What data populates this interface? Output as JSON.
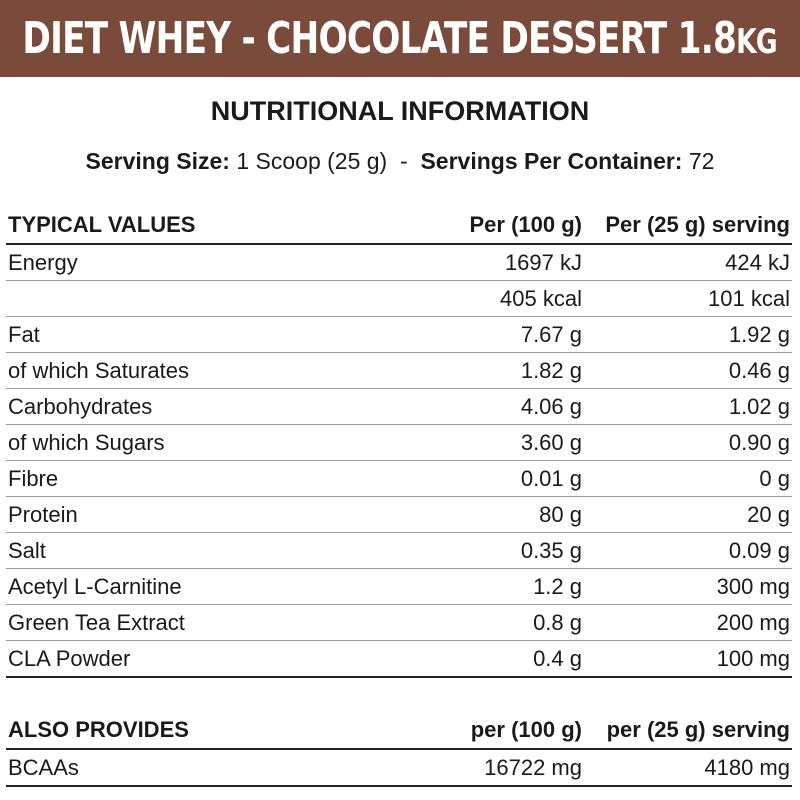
{
  "banner": {
    "title_main": "DIET WHEY - CHOCOLATE DESSERT 1.8",
    "title_unit": "KG",
    "background_color": "#7a4a3a"
  },
  "section_title": "NUTRITIONAL INFORMATION",
  "serving": {
    "size_label": "Serving Size:",
    "size_value": "1 Scoop (25 g)",
    "separator": "-",
    "per_container_label": "Servings Per Container:",
    "per_container_value": "72"
  },
  "typical": {
    "headers": {
      "label": "TYPICAL VALUES",
      "per_100": "Per (100 g)",
      "per_serving": "Per (25 g) serving"
    },
    "rows": [
      {
        "label": "Energy",
        "per_100": "1697 kJ",
        "per_serving": "424 kJ"
      },
      {
        "label": "",
        "per_100": "405 kcal",
        "per_serving": "101 kcal"
      },
      {
        "label": "Fat",
        "per_100": "7.67 g",
        "per_serving": "1.92 g"
      },
      {
        "label": "of which Saturates",
        "per_100": "1.82 g",
        "per_serving": "0.46 g"
      },
      {
        "label": "Carbohydrates",
        "per_100": "4.06 g",
        "per_serving": "1.02 g"
      },
      {
        "label": "of which Sugars",
        "per_100": "3.60 g",
        "per_serving": "0.90 g"
      },
      {
        "label": "Fibre",
        "per_100": "0.01 g",
        "per_serving": "0 g"
      },
      {
        "label": "Protein",
        "per_100": "80 g",
        "per_serving": "20 g"
      },
      {
        "label": "Salt",
        "per_100": "0.35 g",
        "per_serving": "0.09 g"
      },
      {
        "label": "Acetyl L-Carnitine",
        "per_100": "1.2 g",
        "per_serving": "300 mg"
      },
      {
        "label": "Green Tea Extract",
        "per_100": "0.8 g",
        "per_serving": "200 mg"
      },
      {
        "label": "CLA Powder",
        "per_100": "0.4 g",
        "per_serving": "100 mg"
      }
    ]
  },
  "also": {
    "headers": {
      "label": "ALSO PROVIDES",
      "per_100": "per (100 g)",
      "per_serving": "per (25 g) serving"
    },
    "rows": [
      {
        "label": "BCAAs",
        "per_100": "16722 mg",
        "per_serving": "4180 mg"
      }
    ]
  }
}
